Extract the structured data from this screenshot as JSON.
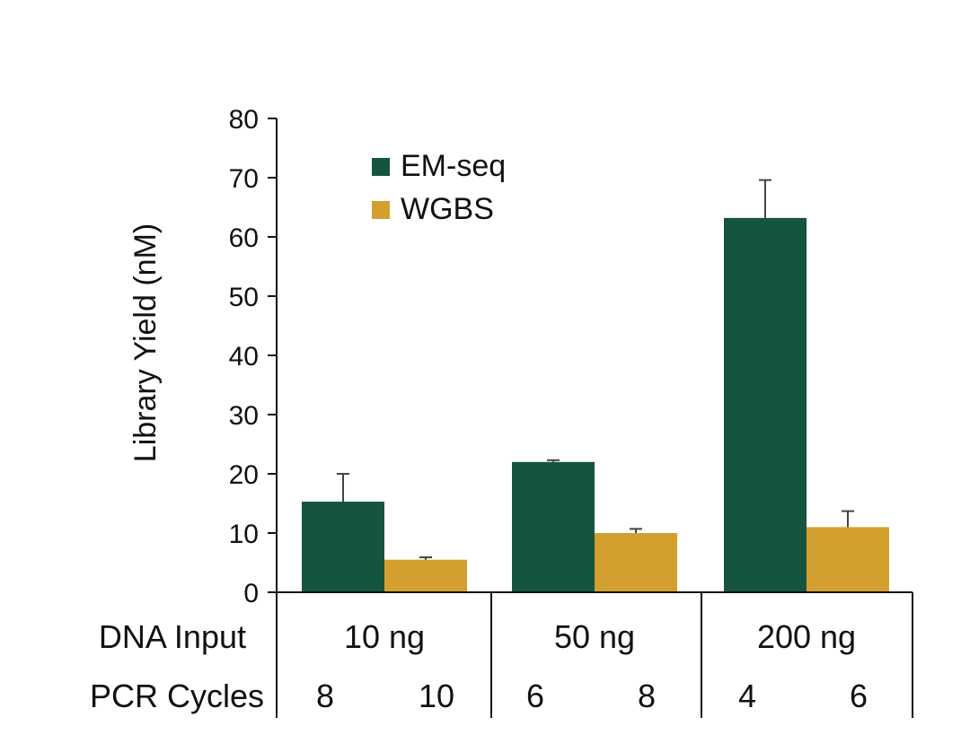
{
  "chart_data": {
    "type": "bar",
    "title": "",
    "xlabel": "",
    "ylabel": "Library Yield (nM)",
    "ylim": [
      0,
      80
    ],
    "yticks": [
      0,
      10,
      20,
      30,
      40,
      50,
      60,
      70,
      80
    ],
    "categories": [
      "10 ng",
      "50 ng",
      "200 ng"
    ],
    "series": [
      {
        "name": "EM-seq",
        "color": "#15543f",
        "values": [
          15.3,
          22.0,
          63.2
        ],
        "errors": [
          4.7,
          0.3,
          6.4
        ],
        "pcr_cycles": [
          "8",
          "6",
          "4"
        ]
      },
      {
        "name": "WGBS",
        "color": "#d39f2e",
        "values": [
          5.5,
          10.0,
          11.0
        ],
        "errors": [
          0.4,
          0.7,
          2.7
        ],
        "pcr_cycles": [
          "10",
          "8",
          "6"
        ]
      }
    ],
    "legend_position": "top-left",
    "row_titles": {
      "dna_input": "DNA Input",
      "pcr_cycles": "PCR Cycles"
    }
  }
}
